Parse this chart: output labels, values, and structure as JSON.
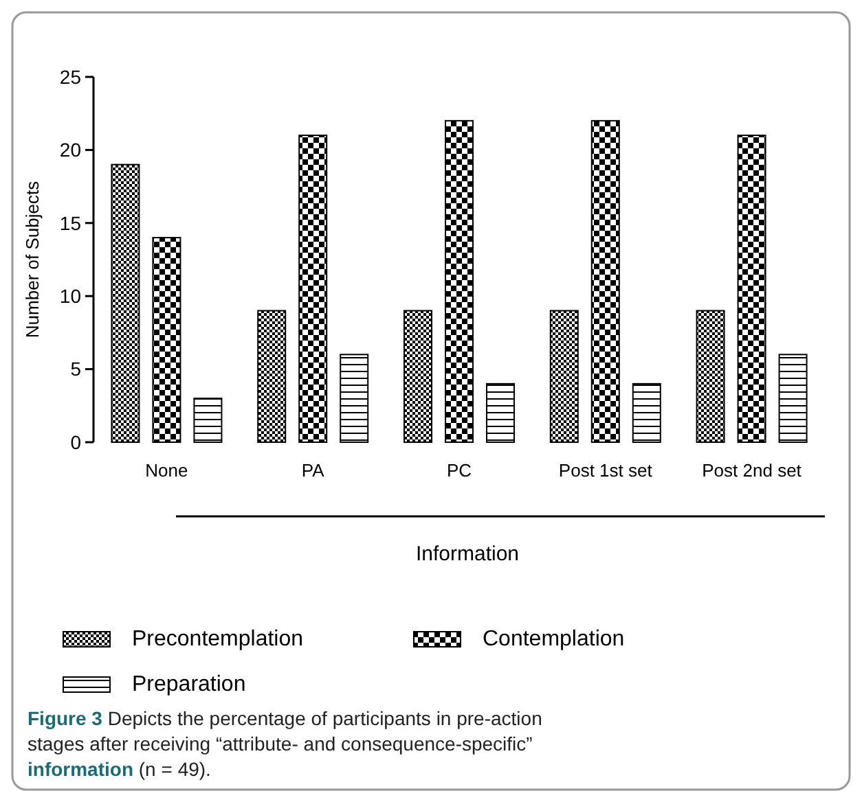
{
  "chart_data": {
    "type": "bar",
    "xlabel": "Information",
    "ylabel": "Number of Subjects",
    "categories": [
      "None",
      "PA",
      "PC",
      "Post 1st set",
      "Post 2nd set"
    ],
    "series": [
      {
        "name": "Precontemplation",
        "color": "#000000",
        "values": [
          19,
          9,
          9,
          9,
          9
        ]
      },
      {
        "name": "Contemplation",
        "color": "#000000",
        "values": [
          14,
          21,
          22,
          22,
          21
        ]
      },
      {
        "name": "Preparation",
        "color": "#000000",
        "values": [
          3,
          6,
          4,
          4,
          6
        ]
      }
    ],
    "ylim": [
      0,
      25
    ],
    "yticks": [
      0,
      5,
      10,
      15,
      20,
      25
    ],
    "grid": false,
    "legend": "bottom",
    "annotations": [
      "Figure 3 Depicts the percentage of participants in pre-action stages after receiving “attribute- and consequence-specific” information (n = 49)."
    ]
  }
}
